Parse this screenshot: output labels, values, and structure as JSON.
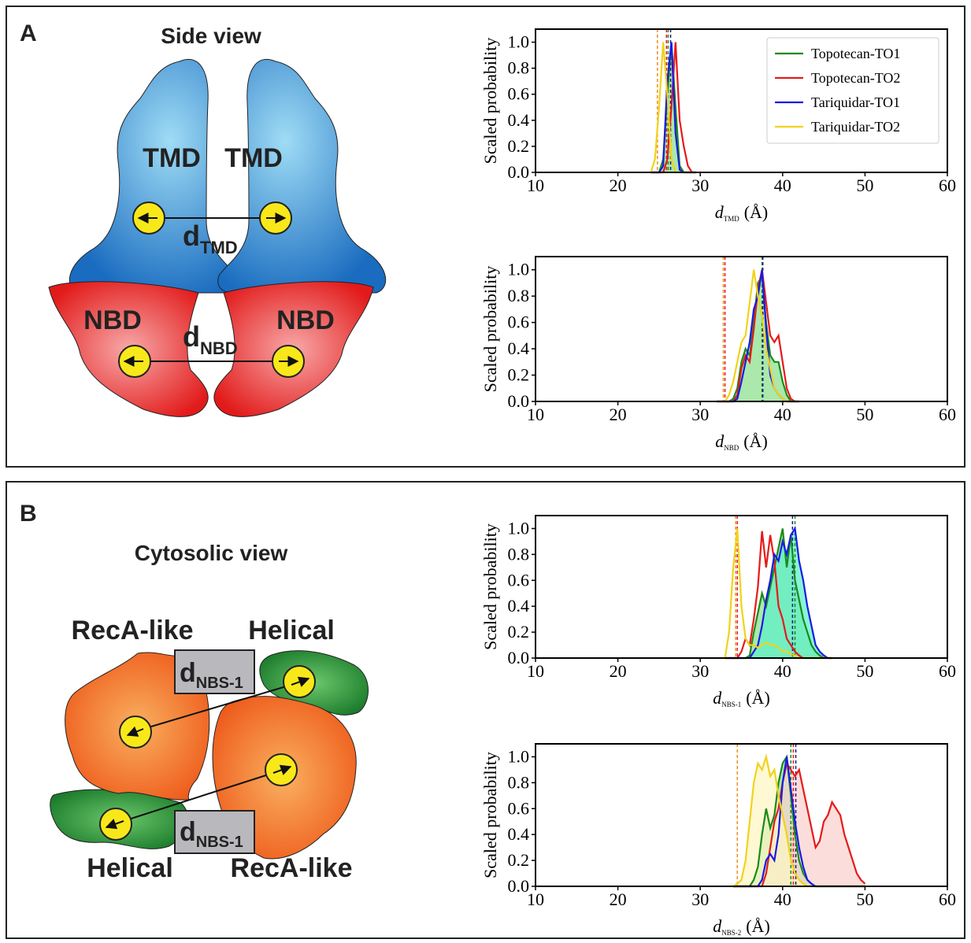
{
  "panel_a": {
    "label": "A",
    "title": "Side view",
    "tmd_left": "TMD",
    "tmd_right": "TMD",
    "d_tmd": {
      "symbol": "d",
      "subscript": "TMD"
    },
    "nbd_left": "NBD",
    "nbd_right": "NBD",
    "d_nbd": {
      "symbol": "d",
      "subscript": "NBD"
    }
  },
  "panel_b": {
    "label": "B",
    "title": "Cytosolic view",
    "reca_top": "RecA-like",
    "helical_top": "Helical",
    "d_top": {
      "symbol": "d",
      "subscript": "NBS-1"
    },
    "d_bottom": {
      "symbol": "d",
      "subscript": "NBS-1"
    },
    "helical_bottom": "Helical",
    "reca_bottom": "RecA-like"
  },
  "chart_data": [
    {
      "type": "line",
      "ylabel": "Scaled probability",
      "xlabel": {
        "symbol": "d",
        "subscript": "TMD",
        "unit": "(Å)"
      },
      "xlim": [
        10,
        60
      ],
      "xticks": [
        10,
        20,
        30,
        40,
        50,
        60
      ],
      "ylim": [
        0,
        1.1
      ],
      "yticks": [
        {
          "value": 0,
          "label": "0.0"
        },
        0.2,
        0.4,
        0.6,
        0.8,
        {
          "value": 1,
          "label": "1.0"
        }
      ],
      "legend": "upper right",
      "x": [
        24,
        24.5,
        25,
        25.5,
        26,
        26.5,
        27,
        27.5,
        28,
        28.5,
        29,
        29.5
      ],
      "series": [
        {
          "name": "Topotecan-TO1",
          "color": "#1a8a1a",
          "fill": "#8fe08f",
          "mean": 26.1,
          "mean_color": "#1a8a1a",
          "values": [
            0,
            0,
            0,
            0.1,
            0.6,
            1.0,
            0.5,
            0.05,
            0,
            0,
            0,
            0
          ]
        },
        {
          "name": "Topotecan-TO2",
          "color": "#e61a1a",
          "mean": 25.9,
          "mean_color": "#e61a1a",
          "values": [
            0,
            0,
            0,
            0,
            0.1,
            0.5,
            1.0,
            0.4,
            0.2,
            0.05,
            0,
            0
          ]
        },
        {
          "name": "Tariquidar-TO1",
          "color": "#1a1ae6",
          "mean": 26.4,
          "mean_color": "#1a1a80",
          "values": [
            0,
            0,
            0,
            0.05,
            0.7,
            1.0,
            0.3,
            0.02,
            0,
            0,
            0,
            0
          ]
        },
        {
          "name": "Tariquidar-TO2",
          "color": "#f2d21a",
          "mean": 24.8,
          "mean_color": "#f08c1a",
          "values": [
            0,
            0.1,
            0.5,
            1.0,
            0.6,
            0.1,
            0,
            0,
            0,
            0,
            0,
            0
          ]
        }
      ]
    },
    {
      "type": "line",
      "ylabel": "Scaled probability",
      "xlabel": {
        "symbol": "d",
        "subscript": "NBD",
        "unit": "(Å)"
      },
      "xlim": [
        10,
        60
      ],
      "xticks": [
        10,
        20,
        30,
        40,
        50,
        60
      ],
      "ylim": [
        0,
        1.1
      ],
      "yticks": [
        {
          "value": 0,
          "label": "0.0"
        },
        0.2,
        0.4,
        0.6,
        0.8,
        {
          "value": 1,
          "label": "1.0"
        }
      ],
      "x": [
        32,
        32.5,
        33,
        33.5,
        34,
        34.5,
        35,
        35.5,
        36,
        36.5,
        37,
        37.5,
        38,
        38.5,
        39,
        39.5,
        40,
        40.5,
        41,
        41.5,
        42
      ],
      "series": [
        {
          "color": "#1a8a1a",
          "fill": "#8fe08f",
          "mean": 37.5,
          "mean_color": "#1a8a1a",
          "values": [
            0,
            0,
            0,
            0,
            0.02,
            0.1,
            0.3,
            0.4,
            0.35,
            0.6,
            0.9,
            0.95,
            0.6,
            0.35,
            0.3,
            0.3,
            0.15,
            0.05,
            0,
            0,
            0
          ]
        },
        {
          "color": "#e61a1a",
          "mean": 33.0,
          "mean_color": "#e61a1a",
          "values": [
            0,
            0,
            0,
            0,
            0,
            0.05,
            0.25,
            0.35,
            0.3,
            0.55,
            0.85,
            1.0,
            0.75,
            0.5,
            0.45,
            0.5,
            0.3,
            0.1,
            0.02,
            0,
            0
          ]
        },
        {
          "color": "#1a1ae6",
          "mean": 37.6,
          "mean_color": "#1a1a80",
          "values": [
            0,
            0,
            0,
            0,
            0,
            0.02,
            0.15,
            0.3,
            0.45,
            0.7,
            0.8,
            1.0,
            0.55,
            0.2,
            0.1,
            0.05,
            0.02,
            0,
            0,
            0,
            0
          ]
        },
        {
          "color": "#f2d21a",
          "mean": 32.8,
          "mean_color": "#f08c1a",
          "values": [
            0,
            0,
            0,
            0.05,
            0.15,
            0.3,
            0.45,
            0.5,
            0.75,
            1.0,
            0.8,
            0.65,
            0.4,
            0.25,
            0.1,
            0.05,
            0.02,
            0,
            0,
            0,
            0
          ]
        }
      ]
    },
    {
      "type": "line",
      "ylabel": "Scaled probability",
      "xlabel": {
        "symbol": "d",
        "subscript": "NBS-1",
        "unit": "(Å)"
      },
      "xlim": [
        10,
        60
      ],
      "xticks": [
        10,
        20,
        30,
        40,
        50,
        60
      ],
      "ylim": [
        0,
        1.1
      ],
      "yticks": [
        {
          "value": 0,
          "label": "0.0"
        },
        0.2,
        0.4,
        0.6,
        0.8,
        {
          "value": 1,
          "label": "1.0"
        }
      ],
      "x": [
        33,
        33.5,
        34,
        34.5,
        35,
        35.5,
        36,
        36.5,
        37,
        37.5,
        38,
        38.5,
        39,
        39.5,
        40,
        40.5,
        41,
        41.5,
        42,
        42.5,
        43,
        43.5,
        44,
        44.5,
        45,
        45.5,
        46
      ],
      "series": [
        {
          "color": "#1a8a1a",
          "fill": "#8fe08f",
          "mean": 41.5,
          "mean_color": "#1a8a1a",
          "values": [
            0,
            0,
            0,
            0,
            0,
            0,
            0.02,
            0.2,
            0.35,
            0.5,
            0.4,
            0.55,
            0.7,
            0.85,
            1.0,
            0.7,
            0.95,
            0.6,
            0.45,
            0.3,
            0.2,
            0.1,
            0.05,
            0.02,
            0,
            0,
            0
          ]
        },
        {
          "color": "#e61a1a",
          "mean": 34.5,
          "mean_color": "#e61a1a",
          "values": [
            0,
            0,
            0,
            0,
            0.05,
            0.15,
            0.1,
            0.3,
            0.55,
            0.98,
            0.7,
            0.95,
            0.75,
            0.4,
            0.3,
            0.15,
            0.1,
            0.05,
            0.02,
            0,
            0,
            0,
            0,
            0,
            0,
            0,
            0
          ]
        },
        {
          "color": "#1a1ae6",
          "fill": "#5ff0c8",
          "mean": 41.2,
          "mean_color": "#1a1a80",
          "values": [
            0,
            0,
            0,
            0,
            0,
            0,
            0,
            0.05,
            0.1,
            0.25,
            0.45,
            0.6,
            0.8,
            0.75,
            0.9,
            0.8,
            0.95,
            1.0,
            0.75,
            0.6,
            0.4,
            0.25,
            0.1,
            0.05,
            0.02,
            0,
            0
          ]
        },
        {
          "color": "#f2d21a",
          "mean": 34.3,
          "mean_color": "#f08c1a",
          "values": [
            0,
            0.2,
            0.7,
            1.0,
            0.4,
            0.15,
            0.1,
            0.1,
            0.08,
            0.1,
            0.12,
            0.1,
            0.1,
            0.08,
            0.05,
            0.05,
            0.03,
            0.02,
            0,
            0,
            0,
            0,
            0,
            0,
            0,
            0,
            0
          ]
        }
      ]
    },
    {
      "type": "line",
      "ylabel": "Scaled probability",
      "xlabel": {
        "symbol": "d",
        "subscript": "NBS-2",
        "unit": "(Å)"
      },
      "xlim": [
        10,
        60
      ],
      "xticks": [
        10,
        20,
        30,
        40,
        50,
        60
      ],
      "ylim": [
        0,
        1.1
      ],
      "yticks": [
        {
          "value": 0,
          "label": "0.0"
        },
        0.2,
        0.4,
        0.6,
        0.8,
        {
          "value": 1,
          "label": "1.0"
        }
      ],
      "x": [
        34,
        34.5,
        35,
        35.5,
        36,
        36.5,
        37,
        37.5,
        38,
        38.5,
        39,
        39.5,
        40,
        40.5,
        41,
        41.5,
        42,
        42.5,
        43,
        43.5,
        44,
        44.5,
        45,
        45.5,
        46,
        46.5,
        47,
        47.5,
        48,
        48.5,
        49,
        49.5,
        50
      ],
      "series": [
        {
          "color": "#1a8a1a",
          "fill": "#8fe08f",
          "mean": 41.0,
          "mean_color": "#1a8a1a",
          "values": [
            0,
            0,
            0,
            0,
            0,
            0.05,
            0.15,
            0.4,
            0.6,
            0.45,
            0.55,
            0.8,
            0.95,
            1.0,
            0.7,
            0.4,
            0.2,
            0.1,
            0.05,
            0.02,
            0,
            0,
            0,
            0,
            0,
            0,
            0,
            0,
            0,
            0,
            0,
            0,
            0
          ]
        },
        {
          "color": "#e61a1a",
          "fill": "#f9d3cf",
          "mean": 41.3,
          "mean_color": "#e61a1a",
          "values": [
            0,
            0,
            0,
            0,
            0,
            0,
            0,
            0,
            0.1,
            0.3,
            0.5,
            0.6,
            0.8,
            0.95,
            0.9,
            0.85,
            0.9,
            0.75,
            0.6,
            0.45,
            0.3,
            0.35,
            0.5,
            0.55,
            0.65,
            0.6,
            0.55,
            0.4,
            0.3,
            0.2,
            0.1,
            0.05,
            0.02
          ]
        },
        {
          "color": "#1a1ae6",
          "mean": 41.6,
          "mean_color": "#1a1a80",
          "values": [
            0,
            0,
            0,
            0,
            0,
            0,
            0,
            0.05,
            0.2,
            0.25,
            0.2,
            0.4,
            0.8,
            1.0,
            0.75,
            0.5,
            0.3,
            0.15,
            0.05,
            0.02,
            0,
            0,
            0,
            0,
            0,
            0,
            0,
            0,
            0,
            0,
            0,
            0,
            0
          ]
        },
        {
          "color": "#f2d21a",
          "fill": "#fdf5c4",
          "mean": 34.5,
          "mean_color": "#f08c1a",
          "values": [
            0,
            0.02,
            0.05,
            0.2,
            0.5,
            0.8,
            0.95,
            0.9,
            1.0,
            0.85,
            0.9,
            0.7,
            0.55,
            0.4,
            0.2,
            0.1,
            0.05,
            0.02,
            0,
            0,
            0,
            0,
            0,
            0,
            0,
            0,
            0,
            0,
            0,
            0,
            0,
            0,
            0
          ]
        }
      ]
    }
  ]
}
